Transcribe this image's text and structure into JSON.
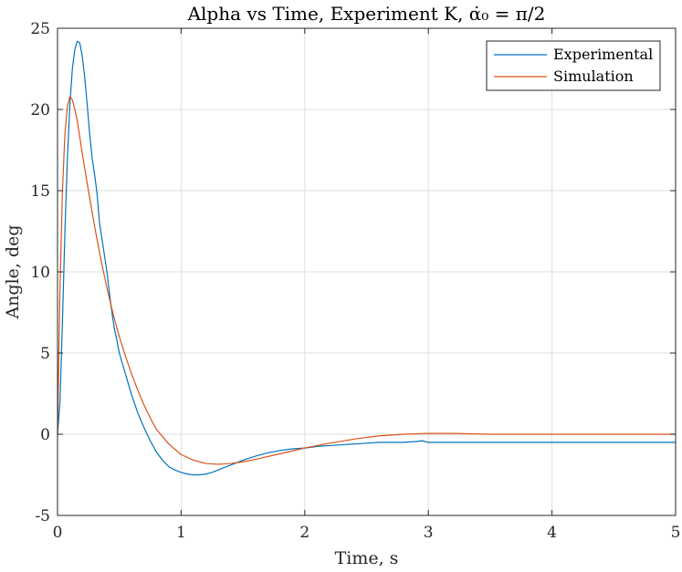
{
  "chart_data": {
    "type": "line",
    "title": "Alpha vs Time, Experiment K, α̇₀ = π/2",
    "xlabel": "Time, s",
    "ylabel": "Angle, deg",
    "xlim": [
      0,
      5
    ],
    "ylim": [
      -5,
      25
    ],
    "xticks": [
      "0",
      "1",
      "2",
      "3",
      "4",
      "5"
    ],
    "yticks": [
      "-5",
      "0",
      "5",
      "10",
      "15",
      "20",
      "25"
    ],
    "grid": true,
    "legend_position": "top-right",
    "colors": {
      "Experimental": "#0072BD",
      "Simulation": "#D95319"
    },
    "series": [
      {
        "name": "Experimental",
        "x": [
          0.0,
          0.02,
          0.04,
          0.06,
          0.08,
          0.1,
          0.12,
          0.14,
          0.16,
          0.18,
          0.2,
          0.22,
          0.24,
          0.26,
          0.28,
          0.3,
          0.32,
          0.34,
          0.36,
          0.38,
          0.4,
          0.42,
          0.44,
          0.46,
          0.48,
          0.5,
          0.55,
          0.6,
          0.65,
          0.7,
          0.75,
          0.8,
          0.85,
          0.9,
          0.95,
          1.0,
          1.05,
          1.1,
          1.15,
          1.2,
          1.25,
          1.3,
          1.35,
          1.4,
          1.5,
          1.6,
          1.7,
          1.8,
          1.9,
          2.0,
          2.1,
          2.2,
          2.3,
          2.4,
          2.5,
          2.6,
          2.7,
          2.8,
          2.9,
          2.95,
          3.0,
          3.2,
          3.5,
          4.0,
          4.5,
          5.0
        ],
        "y": [
          0.0,
          2.0,
          7.0,
          12.5,
          17.0,
          20.3,
          22.5,
          23.7,
          24.2,
          24.1,
          23.3,
          22.0,
          20.3,
          18.5,
          17.0,
          16.0,
          14.8,
          13.0,
          12.0,
          11.0,
          10.0,
          8.7,
          7.5,
          6.5,
          5.8,
          5.0,
          3.7,
          2.4,
          1.3,
          0.4,
          -0.4,
          -1.1,
          -1.6,
          -2.0,
          -2.2,
          -2.35,
          -2.45,
          -2.5,
          -2.5,
          -2.45,
          -2.35,
          -2.2,
          -2.05,
          -1.9,
          -1.6,
          -1.35,
          -1.15,
          -1.0,
          -0.9,
          -0.85,
          -0.75,
          -0.7,
          -0.65,
          -0.6,
          -0.55,
          -0.5,
          -0.5,
          -0.5,
          -0.45,
          -0.4,
          -0.5,
          -0.5,
          -0.5,
          -0.5,
          -0.5,
          -0.5
        ]
      },
      {
        "name": "Simulation",
        "x": [
          0.0,
          0.02,
          0.04,
          0.06,
          0.08,
          0.1,
          0.12,
          0.14,
          0.16,
          0.2,
          0.25,
          0.3,
          0.35,
          0.4,
          0.45,
          0.5,
          0.55,
          0.6,
          0.65,
          0.7,
          0.75,
          0.8,
          0.9,
          1.0,
          1.1,
          1.2,
          1.3,
          1.4,
          1.5,
          1.6,
          1.8,
          2.0,
          2.2,
          2.4,
          2.6,
          2.8,
          3.0,
          3.2,
          3.5,
          4.0,
          4.5,
          5.0
        ],
        "y": [
          0.0,
          9.0,
          15.0,
          18.5,
          20.2,
          20.8,
          20.6,
          20.0,
          19.3,
          17.3,
          15.0,
          12.8,
          10.8,
          9.0,
          7.4,
          6.0,
          4.8,
          3.7,
          2.7,
          1.8,
          1.0,
          0.3,
          -0.6,
          -1.25,
          -1.6,
          -1.8,
          -1.85,
          -1.8,
          -1.7,
          -1.55,
          -1.2,
          -0.85,
          -0.55,
          -0.3,
          -0.1,
          0.0,
          0.05,
          0.05,
          0.0,
          0.0,
          0.0,
          0.0
        ]
      }
    ]
  }
}
